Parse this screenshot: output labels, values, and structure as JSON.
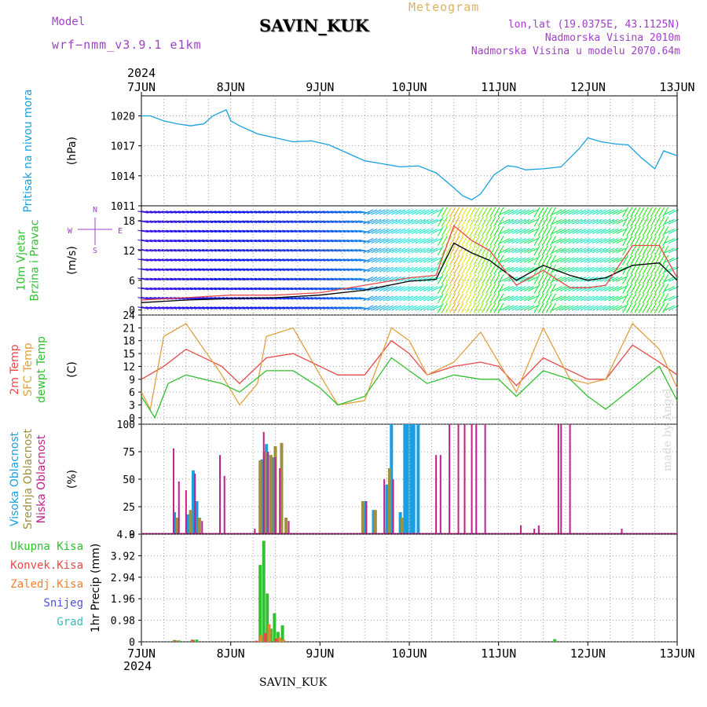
{
  "header": {
    "title": "SAVIN_KUK",
    "model_label": "Model",
    "model_version": "wrf−nmm_v3.9.1  e1km",
    "meteogram_label": "Meteogram",
    "location_line1": "lon,lat (19.0375E, 43.1125N)",
    "location_line2": "Nadmorska Visina 2010m",
    "location_line3": "Nadmorska Visina u modelu 2070.64m",
    "year": "2024"
  },
  "footer": {
    "station": "SAVIN_KUK",
    "year": "2024",
    "made_by": "made by Angel"
  },
  "axis": {
    "dates": [
      "7JUN",
      "8JUN",
      "9JUN",
      "10JUN",
      "11JUN",
      "12JUN",
      "13JUN"
    ],
    "x_range_days": [
      0,
      6
    ]
  },
  "colors": {
    "pressure": "#1aa0e0",
    "t2m": "#e84848",
    "sfc_temp": "#e0a040",
    "dewpoint": "#30c030",
    "high_cloud": "#1aa0e0",
    "mid_cloud": "#a09040",
    "low_cloud": "#c0208a",
    "total_precip": "#30c030",
    "conv_precip": "#e84848",
    "freezing_precip": "#f08030",
    "snow": "#5050e0",
    "hail": "#30c0c0",
    "wind_speed_line": "#000000",
    "wind_gust_line": "#e84848"
  },
  "chart_data": [
    {
      "type": "line",
      "panel": "pressure",
      "ylabel": "(hPa)",
      "side_label": "Pritisak na nivou mora",
      "ylim": [
        1011,
        1022
      ],
      "yticks": [
        1011,
        1014,
        1017,
        1020
      ],
      "grid": true,
      "series": [
        {
          "name": "Pritisak na nivou mora",
          "x": [
            0,
            0.1,
            0.25,
            0.4,
            0.55,
            0.7,
            0.8,
            0.95,
            1.0,
            1.1,
            1.3,
            1.5,
            1.7,
            1.9,
            2.1,
            2.3,
            2.5,
            2.7,
            2.9,
            3.1,
            3.3,
            3.5,
            3.6,
            3.7,
            3.8,
            3.95,
            4.1,
            4.2,
            4.3,
            4.5,
            4.7,
            4.9,
            5.0,
            5.15,
            5.3,
            5.45,
            5.6,
            5.75,
            5.85,
            6.0
          ],
          "values": [
            1020,
            1020,
            1019.5,
            1019.2,
            1019,
            1019.2,
            1020,
            1020.6,
            1019.5,
            1019,
            1018.2,
            1017.8,
            1017.4,
            1017.5,
            1017.1,
            1016.3,
            1015.5,
            1015.2,
            1014.9,
            1015.0,
            1014.3,
            1012.8,
            1012,
            1011.6,
            1012.2,
            1014.1,
            1015.0,
            1014.9,
            1014.6,
            1014.7,
            1014.9,
            1016.7,
            1017.8,
            1017.4,
            1017.2,
            1017.1,
            1015.8,
            1014.7,
            1016.5,
            1016
          ]
        }
      ]
    },
    {
      "type": "line",
      "panel": "wind",
      "ylabel": "(m/s)",
      "side_labels": [
        "10m Vjetar",
        "Brzina i Pravac"
      ],
      "compass": {
        "n": "N",
        "s": "S",
        "e": "E",
        "w": "W"
      },
      "ylim": [
        -1,
        21
      ],
      "yticks": [
        0,
        6,
        12,
        18
      ],
      "grid": true,
      "series": [
        {
          "name": "speed",
          "x": [
            0,
            0.5,
            1.0,
            1.5,
            2.0,
            2.5,
            3.0,
            3.3,
            3.5,
            3.7,
            3.9,
            4.2,
            4.5,
            4.8,
            5.0,
            5.2,
            5.5,
            5.8,
            6.0
          ],
          "values": [
            1.5,
            2.0,
            2.3,
            2.5,
            3.0,
            4.0,
            5.8,
            6.2,
            13.5,
            11.5,
            10.0,
            6.0,
            9.0,
            7.0,
            6.0,
            6.5,
            9.0,
            9.5,
            6.0
          ]
        },
        {
          "name": "gust",
          "x": [
            0,
            0.5,
            1.0,
            1.5,
            2.0,
            2.5,
            3.0,
            3.3,
            3.5,
            3.7,
            3.9,
            4.2,
            4.5,
            4.8,
            5.0,
            5.2,
            5.5,
            5.8,
            6.0
          ],
          "values": [
            2.0,
            2.5,
            3.0,
            3.0,
            3.5,
            5.0,
            6.5,
            7.0,
            17.0,
            14.0,
            12.0,
            5.0,
            8.0,
            4.5,
            4.5,
            5.0,
            13.0,
            13.0,
            6.5
          ]
        }
      ]
    },
    {
      "type": "line",
      "panel": "temperature",
      "ylabel": "(C)",
      "side_labels": [
        "2m Temp",
        "SFC Temp",
        "dewpt Temp"
      ],
      "ylim": [
        -1.5,
        24
      ],
      "yticks": [
        0,
        3,
        6,
        9,
        12,
        15,
        18,
        21,
        24
      ],
      "grid": true,
      "series": [
        {
          "name": "2m Temp",
          "x": [
            0,
            0.25,
            0.5,
            0.9,
            1.1,
            1.4,
            1.7,
            2.0,
            2.2,
            2.5,
            2.8,
            3.0,
            3.2,
            3.5,
            3.8,
            4.0,
            4.2,
            4.5,
            4.8,
            5.0,
            5.2,
            5.5,
            5.8,
            6.0
          ],
          "values": [
            9,
            12,
            16,
            12,
            8,
            14,
            15,
            12,
            10,
            10,
            18,
            15,
            10,
            12,
            13,
            12,
            7.5,
            14,
            11,
            9,
            9,
            17,
            13,
            10
          ]
        },
        {
          "name": "SFC Temp",
          "x": [
            0,
            0.1,
            0.25,
            0.5,
            0.9,
            1.1,
            1.3,
            1.4,
            1.7,
            2.0,
            2.2,
            2.5,
            2.8,
            3.0,
            3.2,
            3.5,
            3.8,
            4.0,
            4.2,
            4.5,
            4.8,
            5.0,
            5.2,
            5.5,
            5.8,
            6.0
          ],
          "values": [
            6,
            2,
            19,
            22,
            10,
            3,
            8,
            19,
            21,
            10,
            3,
            4,
            21,
            18,
            10,
            13,
            20,
            13,
            6,
            21,
            9,
            8,
            9,
            22,
            16,
            7
          ]
        },
        {
          "name": "dewpt Temp",
          "x": [
            0,
            0.15,
            0.3,
            0.5,
            0.9,
            1.1,
            1.4,
            1.7,
            2.0,
            2.2,
            2.5,
            2.8,
            3.0,
            3.2,
            3.5,
            3.8,
            4.0,
            4.2,
            4.5,
            4.8,
            5.0,
            5.2,
            5.5,
            5.8,
            6.0
          ],
          "values": [
            5,
            0,
            8,
            10,
            8,
            6,
            11,
            11,
            7,
            3,
            5,
            14,
            11,
            8,
            10,
            9,
            9,
            5,
            11,
            9,
            5,
            2,
            7,
            12,
            4
          ]
        }
      ]
    },
    {
      "type": "bar",
      "panel": "clouds",
      "ylabel": "(%)",
      "side_labels": [
        "Visoka Oblacnost",
        "Srednja Oblacnost",
        "Niska Oblacnost"
      ],
      "ylim": [
        0,
        100
      ],
      "yticks": [
        0,
        25,
        50,
        75,
        100
      ],
      "grid": true,
      "series": [
        {
          "name": "Visoka Oblacnost",
          "x": [
            0.37,
            0.52,
            0.58,
            0.62,
            1.35,
            1.4,
            1.47,
            2.5,
            2.6,
            2.75,
            2.8,
            2.9,
            2.95,
            2.98,
            3.02,
            3.05,
            3.1
          ],
          "values": [
            20,
            18,
            58,
            30,
            68,
            82,
            70,
            30,
            22,
            45,
            100,
            20,
            100,
            100,
            100,
            100,
            100
          ]
        },
        {
          "name": "Srednja Oblacnost",
          "x": [
            0.4,
            0.55,
            0.65,
            1.33,
            1.38,
            1.45,
            1.5,
            1.57,
            1.62,
            2.48,
            2.62,
            2.78,
            2.92
          ],
          "values": [
            15,
            22,
            15,
            67,
            75,
            72,
            80,
            83,
            15,
            30,
            22,
            60,
            15
          ]
        },
        {
          "name": "Niska Oblacnost",
          "x": [
            0.36,
            0.42,
            0.5,
            0.6,
            0.68,
            0.88,
            0.93,
            1.27,
            1.37,
            1.42,
            1.5,
            1.55,
            1.65,
            2.52,
            2.72,
            2.82,
            3.3,
            3.35,
            3.45,
            3.55,
            3.62,
            3.7,
            3.75,
            3.85,
            4.25,
            4.4,
            4.45,
            4.67,
            4.7,
            4.8,
            5.38
          ],
          "values": [
            78,
            48,
            40,
            55,
            12,
            72,
            53,
            5,
            93,
            75,
            70,
            60,
            12,
            30,
            50,
            50,
            72,
            72,
            100,
            100,
            100,
            100,
            100,
            100,
            8,
            5,
            8,
            100,
            100,
            100,
            5
          ]
        }
      ]
    },
    {
      "type": "bar",
      "panel": "precipitation",
      "ylabel": "1hr Precip (mm)",
      "side_labels": [
        "Ukupna Kisa",
        "Konvek.Kisa",
        "Zaledj.Kisa",
        "Snijeg",
        "Grad"
      ],
      "ylim": [
        0,
        4.9
      ],
      "yticks": [
        0,
        0.98,
        1.96,
        2.94,
        3.92,
        4.9
      ],
      "grid": true,
      "series": [
        {
          "name": "Ukupna Kisa",
          "x": [
            0.37,
            0.42,
            0.57,
            0.62,
            1.33,
            1.37,
            1.41,
            1.45,
            1.49,
            1.53,
            1.58,
            4.63
          ],
          "values": [
            0.08,
            0.06,
            0.1,
            0.1,
            3.5,
            4.6,
            2.2,
            0.6,
            1.3,
            0.45,
            0.75,
            0.12
          ]
        },
        {
          "name": "Konvek.Kisa",
          "x": [
            0.38,
            0.58,
            1.29,
            1.39,
            1.51
          ],
          "values": [
            0.06,
            0.08,
            0.05,
            0.4,
            0.15
          ]
        },
        {
          "name": "Zaledj.Kisa",
          "x": [
            1.34,
            1.43,
            1.55,
            1.59
          ],
          "values": [
            0.3,
            0.8,
            0.2,
            0.1
          ]
        }
      ]
    }
  ]
}
